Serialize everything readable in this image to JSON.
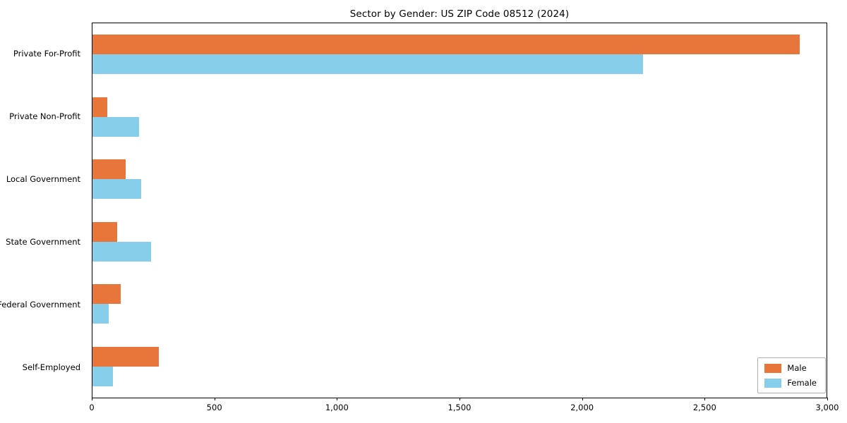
{
  "title": "Sector by Gender: US ZIP Code 08512 (2024)",
  "chart_data": {
    "type": "bar",
    "orientation": "horizontal",
    "title": "Sector by Gender: US ZIP Code 08512 (2024)",
    "categories": [
      "Private For-Profit",
      "Private Non-Profit",
      "Local Government",
      "State Government",
      "Federal Government",
      "Self-Employed"
    ],
    "series": [
      {
        "name": "Male",
        "color": "#e8763b",
        "values": [
          2890,
          60,
          135,
          100,
          115,
          270
        ]
      },
      {
        "name": "Female",
        "color": "#87ceeb",
        "values": [
          2250,
          190,
          200,
          240,
          65,
          85
        ]
      }
    ],
    "xlabel": "",
    "ylabel": "",
    "xlim": [
      0,
      3000
    ],
    "xticks": [
      0,
      500,
      1000,
      1500,
      2000,
      2500,
      3000
    ],
    "xtick_labels": [
      "0",
      "500",
      "1,000",
      "1,500",
      "2,000",
      "2,500",
      "3,000"
    ],
    "grid": false,
    "legend_position": "lower right"
  }
}
